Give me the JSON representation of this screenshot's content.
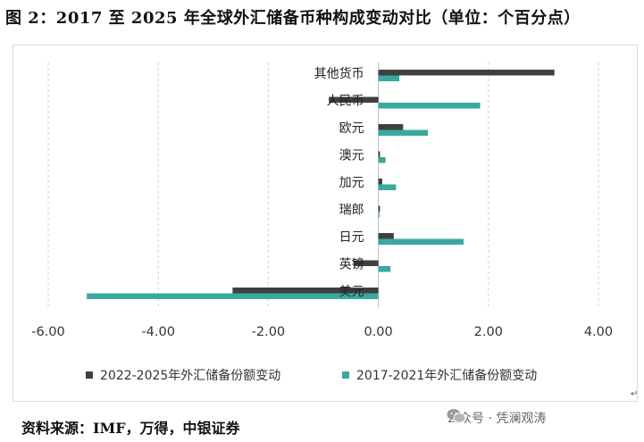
{
  "title": "图 2：2017 至 2025 年全球外汇储备币种构成变动对比（单位：个百分点）",
  "source": "资料来源：IMF，万得，中银证券",
  "watermark": "公众号 · 凭澜观涛",
  "colors": {
    "series1": "#404040",
    "series2": "#3aa99f"
  },
  "chart_data": {
    "type": "bar",
    "orientation": "horizontal",
    "categories": [
      "其他货币",
      "人民币",
      "欧元",
      "澳元",
      "加元",
      "瑞郎",
      "日元",
      "英镑",
      "美元"
    ],
    "series": [
      {
        "name": "2022-2025年外汇储备份额变动",
        "values": [
          3.2,
          -0.9,
          0.45,
          0.03,
          0.07,
          0.03,
          0.28,
          -0.45,
          -2.65
        ]
      },
      {
        "name": "2017-2021年外汇储备份额变动",
        "values": [
          0.38,
          1.85,
          0.9,
          0.13,
          0.32,
          0.02,
          1.55,
          0.22,
          -5.3
        ]
      }
    ],
    "xlim": [
      -6.0,
      4.0
    ],
    "xticks": [
      "-6.00",
      "-4.00",
      "-2.00",
      "0.00",
      "2.00",
      "4.00"
    ],
    "xtick_values": [
      -6,
      -4,
      -2,
      0,
      2,
      4
    ],
    "grid": "vertical dashed",
    "legend": "bottom"
  }
}
